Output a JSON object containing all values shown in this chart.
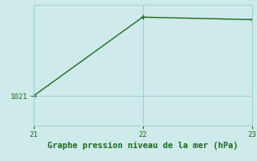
{
  "x": [
    21,
    22,
    23
  ],
  "y": [
    1021.0,
    1024.2,
    1024.1
  ],
  "xlim": [
    21.0,
    23.0
  ],
  "ylim": [
    1019.8,
    1024.7
  ],
  "xticks": [
    21,
    22,
    23
  ],
  "yticks": [
    1021
  ],
  "ytick_labels": [
    "1021"
  ],
  "line_color": "#1a6b1a",
  "marker": "+",
  "marker_size": 5,
  "bg_color": "#ceeaea",
  "grid_color": "#9ecece",
  "xlabel": "Graphe pression niveau de la mer (hPa)",
  "xlabel_color": "#1a6b1a",
  "xlabel_fontsize": 7.5,
  "tick_fontsize": 6.5,
  "tick_color": "#1a6b1a",
  "linewidth": 1.0
}
